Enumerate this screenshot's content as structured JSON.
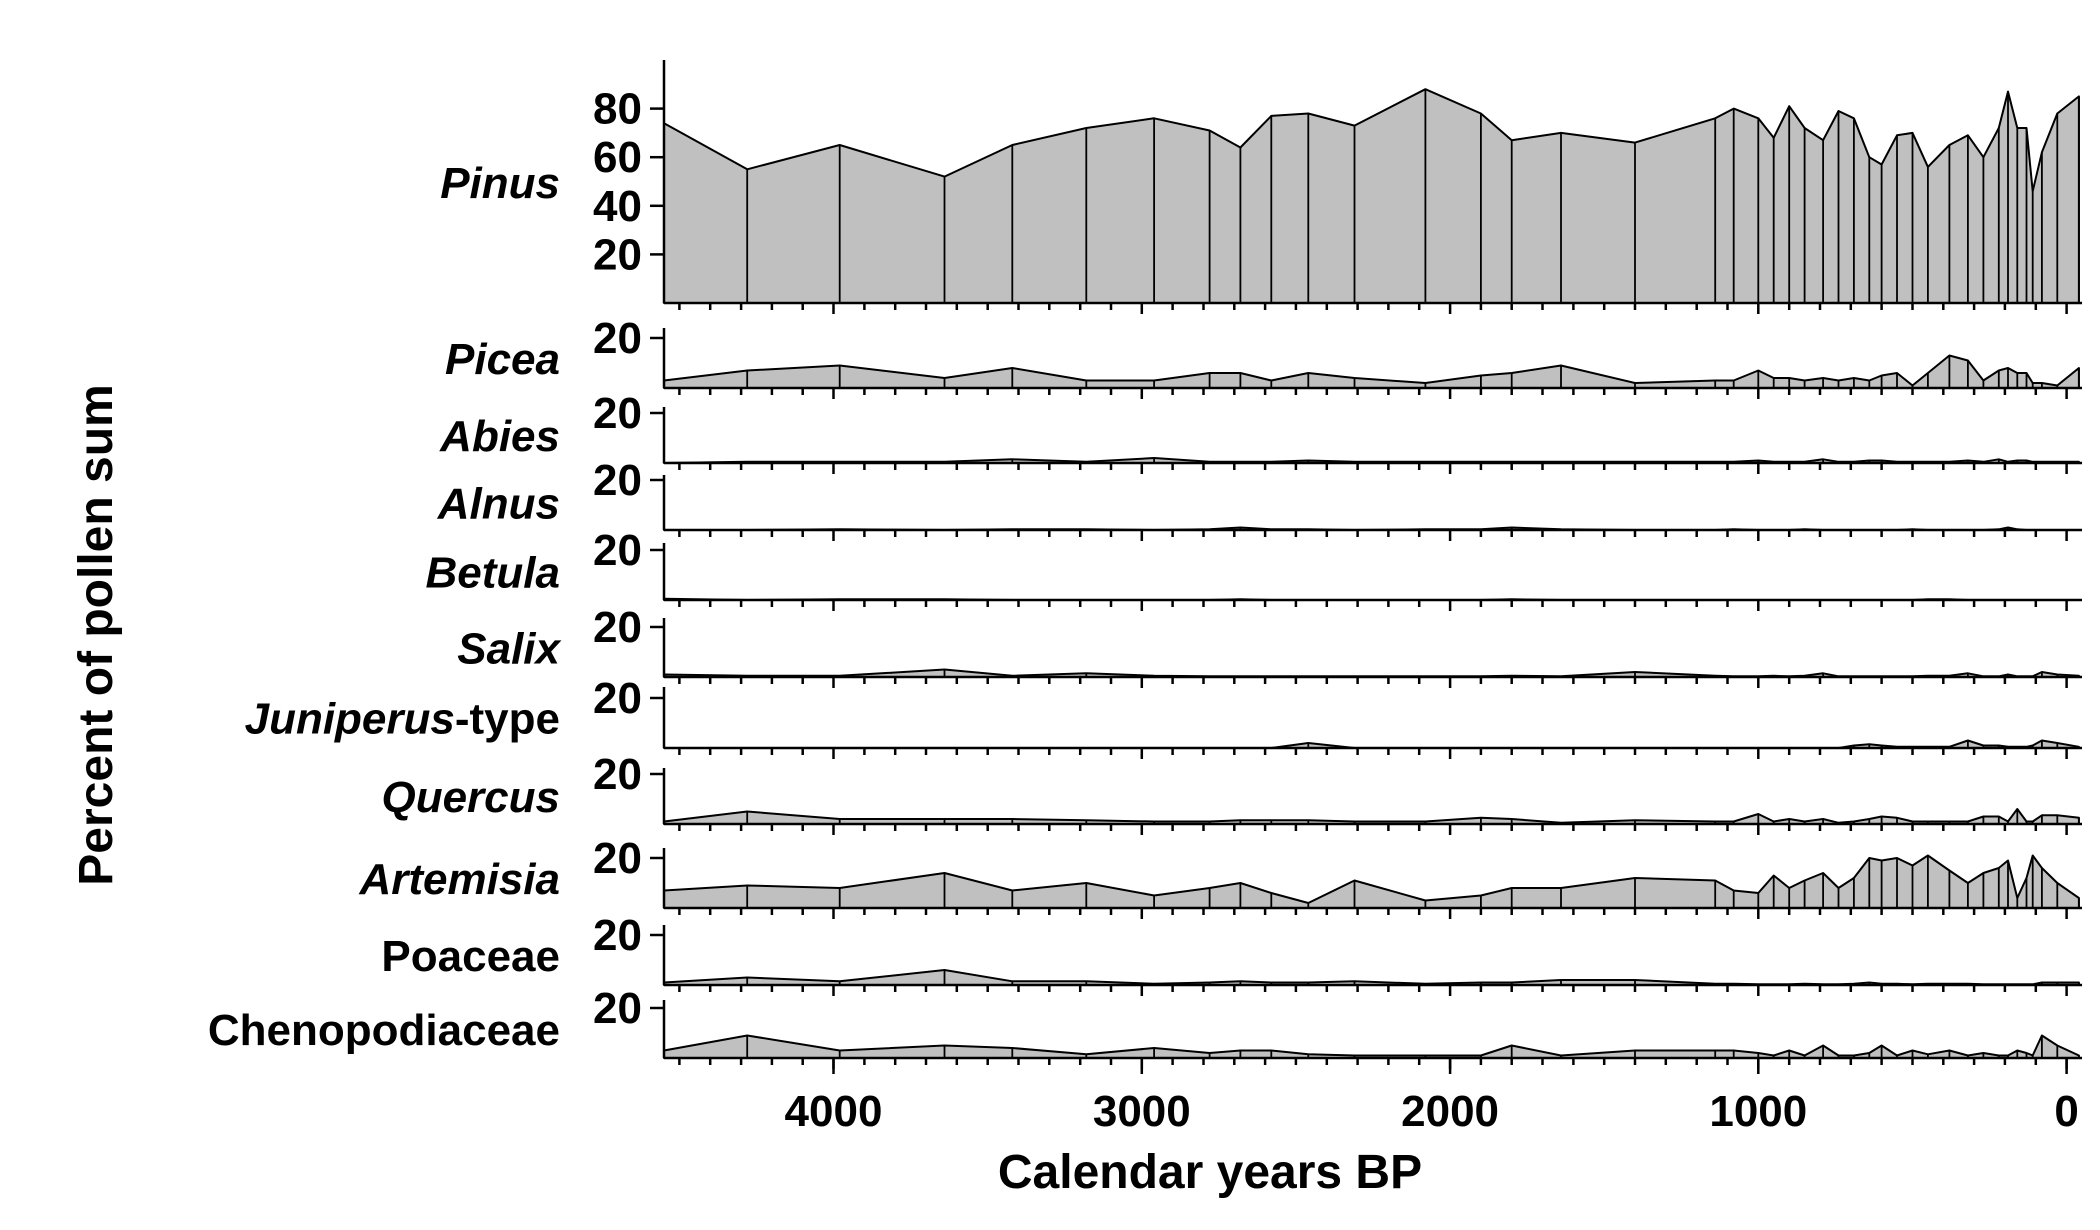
{
  "chart_data": {
    "type": "area",
    "xlabel": "Calendar years BP",
    "ylabel": "Percent of pollen sum",
    "xlim": [
      4550,
      -50
    ],
    "x_ticks": [
      4000,
      3000,
      2000,
      1000,
      0
    ],
    "x_tick_labels": [
      "4000",
      "3000",
      "2000",
      "1000",
      "0"
    ],
    "samples_bp": [
      4550,
      4280,
      3980,
      3640,
      3420,
      3180,
      2960,
      2780,
      2680,
      2580,
      2460,
      2310,
      2080,
      1900,
      1800,
      1640,
      1400,
      1140,
      1080,
      1000,
      950,
      900,
      850,
      790,
      740,
      690,
      640,
      600,
      550,
      500,
      450,
      380,
      320,
      270,
      220,
      190,
      160,
      130,
      110,
      80,
      30,
      -40
    ],
    "series": [
      {
        "name": "Pinus",
        "italic": "Pinus",
        "suffix": "",
        "yticks": [
          20,
          40,
          60,
          80
        ],
        "ytick_labels": [
          "20",
          "40",
          "60",
          "80"
        ],
        "ymax": 100,
        "values": [
          74,
          55,
          65,
          52,
          65,
          72,
          76,
          71,
          64,
          77,
          78,
          73,
          88,
          78,
          67,
          70,
          66,
          76,
          80,
          76,
          68,
          81,
          72,
          67,
          79,
          76,
          60,
          57,
          69,
          70,
          56,
          65,
          69,
          60,
          72,
          87,
          72,
          72,
          46,
          62,
          78,
          85
        ]
      },
      {
        "name": "Picea",
        "italic": "Picea",
        "suffix": "",
        "yticks": [
          20
        ],
        "ytick_labels": [
          "20"
        ],
        "ymax": 22,
        "values": [
          3,
          7,
          9,
          4,
          8,
          3,
          3,
          6,
          6,
          3,
          6,
          4,
          2,
          5,
          6,
          9,
          2,
          3,
          3,
          7,
          4,
          4,
          3,
          4,
          3,
          4,
          3,
          5,
          6,
          1,
          6,
          13,
          11,
          3,
          7,
          8,
          6,
          6,
          2,
          2,
          1,
          8
        ]
      },
      {
        "name": "Abies",
        "italic": "Abies",
        "suffix": "",
        "yticks": [
          20
        ],
        "ytick_labels": [
          "20"
        ],
        "ymax": 22,
        "values": [
          0,
          0.5,
          0.5,
          0.5,
          1.5,
          0.5,
          2,
          0.5,
          0.5,
          0.5,
          1,
          0.5,
          0.5,
          0.5,
          0.5,
          0.5,
          0.5,
          0.5,
          0.5,
          1,
          0.5,
          0.5,
          0.5,
          1.5,
          0.5,
          0.5,
          1,
          1,
          0.5,
          0.5,
          0.5,
          0.5,
          1,
          0.5,
          1.5,
          0.5,
          1,
          1,
          0.5,
          0.5,
          0.5,
          0.5
        ]
      },
      {
        "name": "Alnus",
        "italic": "Alnus",
        "suffix": "",
        "yticks": [
          20
        ],
        "ytick_labels": [
          "20"
        ],
        "ymax": 22,
        "values": [
          0,
          0,
          0.3,
          0,
          0.3,
          0.3,
          0,
          0.3,
          1,
          0.3,
          0.3,
          0,
          0.3,
          0.3,
          1,
          0.3,
          0,
          0,
          0.3,
          0,
          0,
          0,
          0.3,
          0,
          0,
          0,
          0,
          0,
          0,
          0.3,
          0,
          0,
          0,
          0,
          0.3,
          1,
          0.3,
          0,
          0,
          0,
          0,
          0
        ]
      },
      {
        "name": "Betula",
        "italic": "Betula",
        "suffix": "",
        "yticks": [
          20
        ],
        "ytick_labels": [
          "20"
        ],
        "ymax": 22,
        "values": [
          0.5,
          0,
          0.3,
          0.3,
          0,
          0,
          0,
          0,
          0.3,
          0,
          0,
          0,
          0,
          0,
          0.3,
          0,
          0,
          0,
          0,
          0,
          0,
          0,
          0,
          0,
          0,
          0,
          0,
          0,
          0,
          0,
          0.3,
          0.3,
          0,
          0,
          0,
          0,
          0,
          0,
          0,
          0,
          0,
          0
        ]
      },
      {
        "name": "Salix",
        "italic": "Salix",
        "suffix": "",
        "yticks": [
          20
        ],
        "ytick_labels": [
          "20"
        ],
        "ymax": 22,
        "values": [
          1,
          0.5,
          0.5,
          3,
          0.5,
          1.5,
          0.5,
          0.3,
          0.3,
          0.3,
          0.3,
          0.3,
          0.3,
          0.3,
          0.5,
          0.3,
          2,
          0.5,
          0.3,
          0.3,
          0.5,
          0.3,
          0.5,
          1.5,
          0.3,
          0.3,
          0.3,
          0.3,
          0.3,
          0.3,
          0.5,
          0.5,
          1.5,
          0.3,
          0.3,
          1,
          0.3,
          0.3,
          0.3,
          2,
          1,
          0.5
        ]
      },
      {
        "name": "Juniperus-type",
        "italic": "Juniperus",
        "suffix": "-type",
        "yticks": [
          20
        ],
        "ytick_labels": [
          "20"
        ],
        "ymax": 22,
        "values": [
          0,
          0,
          0,
          0,
          0,
          0,
          0,
          0,
          0,
          0,
          2,
          0,
          0,
          0,
          0,
          0,
          0,
          0,
          0,
          0,
          0,
          0,
          0,
          0,
          0,
          1,
          1.5,
          1,
          0.5,
          0.5,
          0.5,
          0.5,
          3,
          1,
          1,
          0.5,
          0.5,
          0.5,
          1,
          3,
          2,
          0.5
        ]
      },
      {
        "name": "Quercus",
        "italic": "Quercus",
        "suffix": "",
        "yticks": [
          20
        ],
        "ytick_labels": [
          "20"
        ],
        "ymax": 22,
        "values": [
          1,
          5,
          2,
          2,
          2,
          1.5,
          1,
          1,
          1.5,
          1.5,
          1.5,
          1,
          1,
          2.5,
          2,
          0.5,
          1.5,
          1,
          1,
          4,
          1,
          2,
          1,
          2,
          0.5,
          1,
          2,
          3,
          2.5,
          1,
          1,
          1,
          1,
          3,
          3,
          1,
          6,
          1,
          1,
          3.5,
          3.5,
          2.5
        ]
      },
      {
        "name": "Artemisia",
        "italic": "Artemisia",
        "suffix": "",
        "yticks": [
          20
        ],
        "ytick_labels": [
          "20"
        ],
        "ymax": 22,
        "values": [
          7,
          9,
          8,
          14,
          7,
          10,
          5,
          8,
          10,
          6,
          2,
          11,
          3,
          5,
          8,
          8,
          12,
          11,
          7,
          6,
          13,
          8,
          11,
          14,
          8,
          12,
          20,
          19,
          20,
          17,
          21,
          15,
          10,
          14,
          16,
          19,
          4,
          12,
          21,
          16,
          10,
          4
        ]
      },
      {
        "name": "Poaceae",
        "italic": "",
        "suffix": "Poaceae",
        "yticks": [
          20
        ],
        "ytick_labels": [
          "20"
        ],
        "ymax": 22,
        "values": [
          1,
          3,
          1.5,
          6,
          1.5,
          1.5,
          0.5,
          1,
          1.5,
          1,
          1,
          1.5,
          0.5,
          1,
          1,
          2,
          2,
          0.5,
          0.5,
          0.3,
          0.3,
          0.3,
          0.5,
          0.3,
          0.3,
          0.5,
          1,
          0.5,
          0.5,
          0.3,
          0.5,
          0.5,
          0.5,
          0.3,
          0.3,
          0.3,
          0.3,
          0.3,
          0.3,
          1,
          1,
          1
        ]
      },
      {
        "name": "Chenopodiaceae",
        "italic": "",
        "suffix": "Chenopodiaceae",
        "yticks": [
          20
        ],
        "ytick_labels": [
          "20"
        ],
        "ymax": 22,
        "values": [
          3,
          9,
          3,
          5,
          4,
          1.5,
          4,
          2,
          3,
          3,
          1.5,
          1,
          1,
          1,
          5,
          1,
          3,
          3,
          3,
          2,
          1,
          3,
          1,
          5,
          1,
          1,
          2,
          5,
          1,
          3,
          1.5,
          3,
          1,
          2,
          1,
          1,
          3,
          2,
          1,
          9,
          5,
          1
        ]
      }
    ]
  }
}
